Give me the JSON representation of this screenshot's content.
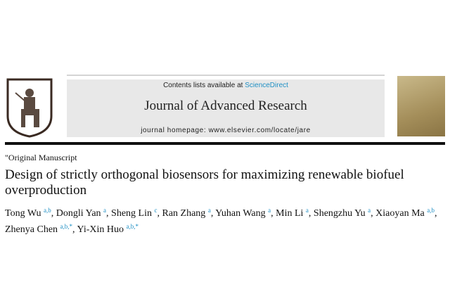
{
  "header": {
    "contents_prefix": "Contents lists available at ",
    "contents_link": "ScienceDirect",
    "journal_title": "Journal of Advanced Research",
    "homepage": "journal homepage: www.elsevier.com/locate/jare",
    "cover_title": "Journal of Advanced Research"
  },
  "article": {
    "section": "\"Original Manuscript",
    "title": "Design of strictly orthogonal biosensors for maximizing renewable biofuel overproduction",
    "authors": [
      {
        "name": "Tong Wu",
        "aff": "a,b"
      },
      {
        "name": "Dongli Yan",
        "aff": "a"
      },
      {
        "name": "Sheng Lin",
        "aff": "c"
      },
      {
        "name": "Ran Zhang",
        "aff": "a"
      },
      {
        "name": "Yuhan Wang",
        "aff": "a"
      },
      {
        "name": "Min Li",
        "aff": "a"
      },
      {
        "name": "Shengzhu Yu",
        "aff": "a"
      },
      {
        "name": "Xiaoyan Ma",
        "aff": "a,b"
      },
      {
        "name": "Zhenya Chen",
        "aff": "a,b,*"
      },
      {
        "name": "Yi-Xin Huo",
        "aff": "a,b,*"
      }
    ]
  },
  "colors": {
    "link": "#1f8fc4",
    "banner": "#e8e8e8"
  }
}
